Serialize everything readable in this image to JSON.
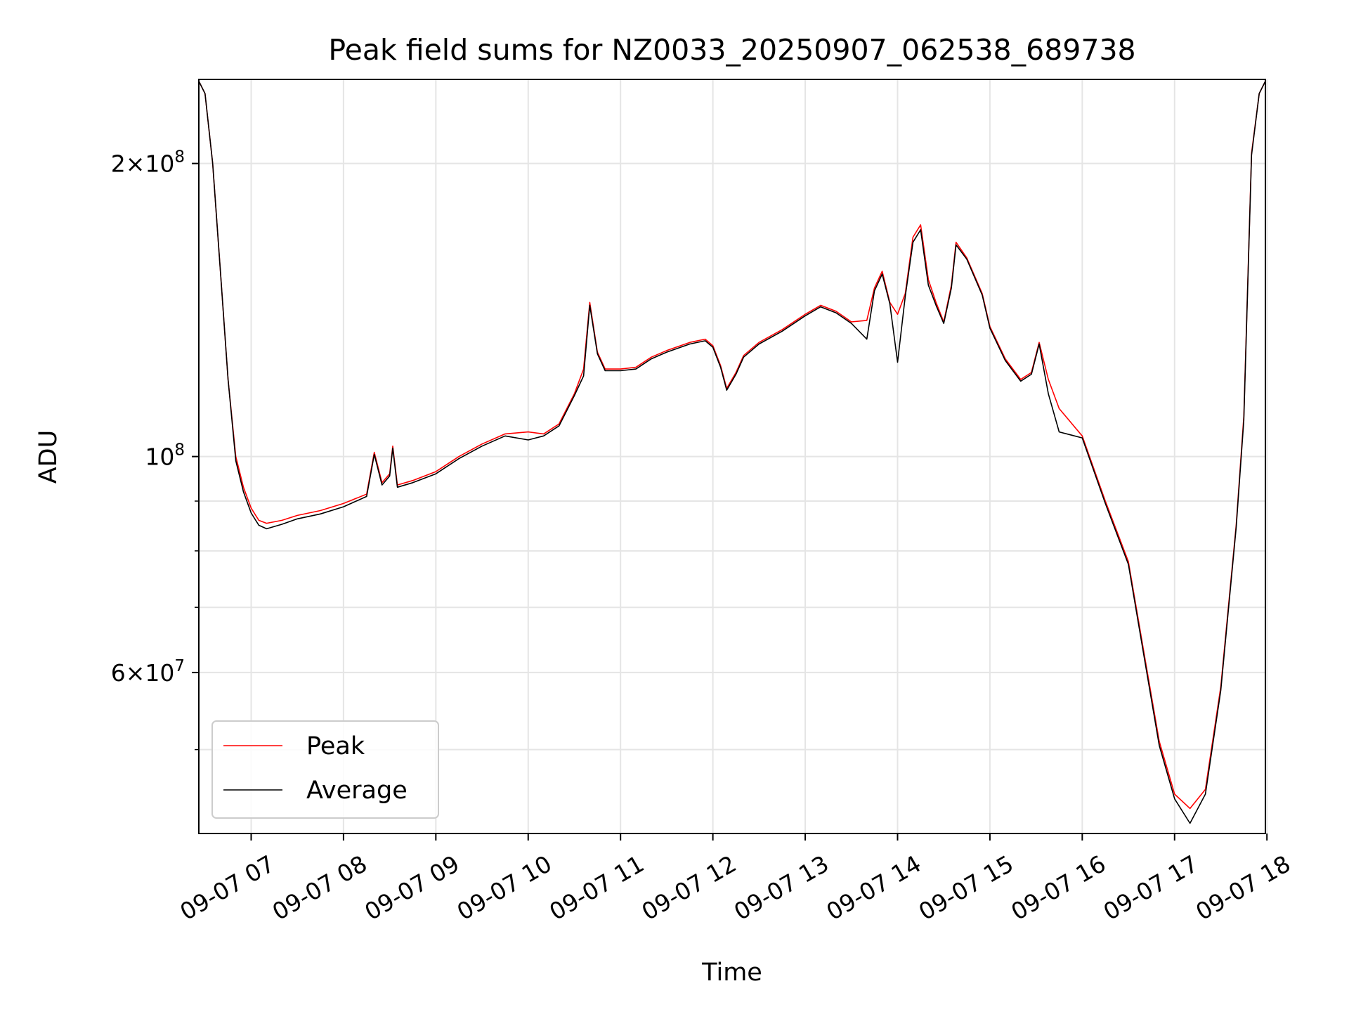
{
  "colors": {
    "peak": "#ff0000",
    "average": "#000000",
    "grid": "#e5e5e5",
    "axes": "#000000",
    "legend_border": "#cccccc",
    "background": "#ffffff"
  },
  "chart_data": {
    "type": "line",
    "title": "Peak field sums for NZ0033_20250907_062538_689738",
    "xlabel": "Time",
    "ylabel": "ADU",
    "yscale": "log",
    "grid": true,
    "legend_position": "lower-left",
    "xlim": [
      "2025-09-07 06:26",
      "2025-09-07 17:59"
    ],
    "ylim": [
      41000000,
      244000000
    ],
    "x_ticks": [
      {
        "t": "2025-09-07 07:00",
        "label": "09-07 07"
      },
      {
        "t": "2025-09-07 08:00",
        "label": "09-07 08"
      },
      {
        "t": "2025-09-07 09:00",
        "label": "09-07 09"
      },
      {
        "t": "2025-09-07 10:00",
        "label": "09-07 10"
      },
      {
        "t": "2025-09-07 11:00",
        "label": "09-07 11"
      },
      {
        "t": "2025-09-07 12:00",
        "label": "09-07 12"
      },
      {
        "t": "2025-09-07 13:00",
        "label": "09-07 13"
      },
      {
        "t": "2025-09-07 14:00",
        "label": "09-07 14"
      },
      {
        "t": "2025-09-07 15:00",
        "label": "09-07 15"
      },
      {
        "t": "2025-09-07 16:00",
        "label": "09-07 16"
      },
      {
        "t": "2025-09-07 17:00",
        "label": "09-07 17"
      },
      {
        "t": "2025-09-07 18:00",
        "label": "09-07 18"
      }
    ],
    "y_major_ticks": [
      {
        "value": 200000000,
        "mantissa": "2",
        "exponent": "8"
      },
      {
        "value": 100000000,
        "mantissa": "",
        "exponent": "8"
      },
      {
        "value": 60000000,
        "mantissa": "6",
        "exponent": "7"
      }
    ],
    "y_minor_ticks": [
      50000000,
      70000000,
      80000000,
      90000000
    ],
    "legend": [
      {
        "label": "Peak",
        "series": "Peak"
      },
      {
        "label": "Average",
        "series": "Average"
      }
    ],
    "series": [
      {
        "name": "Peak",
        "points": [
          [
            "2025-09-07 06:26",
            243000000
          ],
          [
            "2025-09-07 06:30",
            236000000
          ],
          [
            "2025-09-07 06:35",
            200000000
          ],
          [
            "2025-09-07 06:40",
            155000000
          ],
          [
            "2025-09-07 06:45",
            120000000
          ],
          [
            "2025-09-07 06:50",
            100000000
          ],
          [
            "2025-09-07 06:55",
            93000000
          ],
          [
            "2025-09-07 07:00",
            88500000
          ],
          [
            "2025-09-07 07:05",
            86000000
          ],
          [
            "2025-09-07 07:10",
            85400000
          ],
          [
            "2025-09-07 07:20",
            86000000
          ],
          [
            "2025-09-07 07:30",
            87000000
          ],
          [
            "2025-09-07 07:45",
            88000000
          ],
          [
            "2025-09-07 08:00",
            89500000
          ],
          [
            "2025-09-07 08:15",
            91500000
          ],
          [
            "2025-09-07 08:20",
            101000000
          ],
          [
            "2025-09-07 08:25",
            94000000
          ],
          [
            "2025-09-07 08:30",
            96000000
          ],
          [
            "2025-09-07 08:32",
            102500000
          ],
          [
            "2025-09-07 08:35",
            93500000
          ],
          [
            "2025-09-07 08:45",
            94500000
          ],
          [
            "2025-09-07 09:00",
            96500000
          ],
          [
            "2025-09-07 09:15",
            100000000
          ],
          [
            "2025-09-07 09:30",
            103000000
          ],
          [
            "2025-09-07 09:45",
            105500000
          ],
          [
            "2025-09-07 10:00",
            106000000
          ],
          [
            "2025-09-07 10:10",
            105500000
          ],
          [
            "2025-09-07 10:20",
            108000000
          ],
          [
            "2025-09-07 10:30",
            116000000
          ],
          [
            "2025-09-07 10:36",
            123000000
          ],
          [
            "2025-09-07 10:40",
            144000000
          ],
          [
            "2025-09-07 10:45",
            128000000
          ],
          [
            "2025-09-07 10:50",
            123000000
          ],
          [
            "2025-09-07 11:00",
            123000000
          ],
          [
            "2025-09-07 11:10",
            123500000
          ],
          [
            "2025-09-07 11:20",
            126500000
          ],
          [
            "2025-09-07 11:30",
            128500000
          ],
          [
            "2025-09-07 11:45",
            131000000
          ],
          [
            "2025-09-07 11:55",
            132000000
          ],
          [
            "2025-09-07 12:00",
            130000000
          ],
          [
            "2025-09-07 12:05",
            124000000
          ],
          [
            "2025-09-07 12:09",
            117500000
          ],
          [
            "2025-09-07 12:15",
            122000000
          ],
          [
            "2025-09-07 12:20",
            127000000
          ],
          [
            "2025-09-07 12:30",
            131000000
          ],
          [
            "2025-09-07 12:45",
            135000000
          ],
          [
            "2025-09-07 13:00",
            140000000
          ],
          [
            "2025-09-07 13:10",
            143000000
          ],
          [
            "2025-09-07 13:20",
            141000000
          ],
          [
            "2025-09-07 13:30",
            137500000
          ],
          [
            "2025-09-07 13:40",
            138000000
          ],
          [
            "2025-09-07 13:45",
            149000000
          ],
          [
            "2025-09-07 13:50",
            155000000
          ],
          [
            "2025-09-07 13:55",
            144000000
          ],
          [
            "2025-09-07 14:00",
            140000000
          ],
          [
            "2025-09-07 14:05",
            147000000
          ],
          [
            "2025-09-07 14:10",
            168000000
          ],
          [
            "2025-09-07 14:15",
            173000000
          ],
          [
            "2025-09-07 14:20",
            152000000
          ],
          [
            "2025-09-07 14:25",
            144000000
          ],
          [
            "2025-09-07 14:30",
            137500000
          ],
          [
            "2025-09-07 14:35",
            150000000
          ],
          [
            "2025-09-07 14:38",
            166000000
          ],
          [
            "2025-09-07 14:45",
            160000000
          ],
          [
            "2025-09-07 14:55",
            147000000
          ],
          [
            "2025-09-07 15:00",
            136000000
          ],
          [
            "2025-09-07 15:10",
            126000000
          ],
          [
            "2025-09-07 15:20",
            120000000
          ],
          [
            "2025-09-07 15:27",
            122000000
          ],
          [
            "2025-09-07 15:32",
            131000000
          ],
          [
            "2025-09-07 15:38",
            120000000
          ],
          [
            "2025-09-07 15:45",
            112000000
          ],
          [
            "2025-09-07 16:00",
            105000000
          ],
          [
            "2025-09-07 16:15",
            90000000
          ],
          [
            "2025-09-07 16:30",
            78000000
          ],
          [
            "2025-09-07 16:40",
            63000000
          ],
          [
            "2025-09-07 16:50",
            51000000
          ],
          [
            "2025-09-07 17:00",
            45000000
          ],
          [
            "2025-09-07 17:10",
            43500000
          ],
          [
            "2025-09-07 17:20",
            45500000
          ],
          [
            "2025-09-07 17:30",
            58000000
          ],
          [
            "2025-09-07 17:40",
            85000000
          ],
          [
            "2025-09-07 17:45",
            110000000
          ],
          [
            "2025-09-07 17:50",
            205000000
          ],
          [
            "2025-09-07 17:55",
            236000000
          ],
          [
            "2025-09-07 17:59",
            243000000
          ]
        ]
      },
      {
        "name": "Average",
        "points": [
          [
            "2025-09-07 06:26",
            243000000
          ],
          [
            "2025-09-07 06:30",
            236000000
          ],
          [
            "2025-09-07 06:35",
            200000000
          ],
          [
            "2025-09-07 06:40",
            155000000
          ],
          [
            "2025-09-07 06:45",
            120000000
          ],
          [
            "2025-09-07 06:50",
            99000000
          ],
          [
            "2025-09-07 06:55",
            92000000
          ],
          [
            "2025-09-07 07:00",
            87500000
          ],
          [
            "2025-09-07 07:05",
            85000000
          ],
          [
            "2025-09-07 07:10",
            84300000
          ],
          [
            "2025-09-07 07:20",
            85200000
          ],
          [
            "2025-09-07 07:30",
            86300000
          ],
          [
            "2025-09-07 07:45",
            87300000
          ],
          [
            "2025-09-07 08:00",
            88800000
          ],
          [
            "2025-09-07 08:15",
            91000000
          ],
          [
            "2025-09-07 08:20",
            100500000
          ],
          [
            "2025-09-07 08:25",
            93500000
          ],
          [
            "2025-09-07 08:30",
            95500000
          ],
          [
            "2025-09-07 08:32",
            102000000
          ],
          [
            "2025-09-07 08:35",
            93000000
          ],
          [
            "2025-09-07 08:45",
            94000000
          ],
          [
            "2025-09-07 09:00",
            96000000
          ],
          [
            "2025-09-07 09:15",
            99500000
          ],
          [
            "2025-09-07 09:30",
            102500000
          ],
          [
            "2025-09-07 09:45",
            105000000
          ],
          [
            "2025-09-07 10:00",
            104000000
          ],
          [
            "2025-09-07 10:10",
            105000000
          ],
          [
            "2025-09-07 10:20",
            107500000
          ],
          [
            "2025-09-07 10:30",
            115500000
          ],
          [
            "2025-09-07 10:36",
            121000000
          ],
          [
            "2025-09-07 10:40",
            143000000
          ],
          [
            "2025-09-07 10:45",
            127500000
          ],
          [
            "2025-09-07 10:50",
            122500000
          ],
          [
            "2025-09-07 11:00",
            122500000
          ],
          [
            "2025-09-07 11:10",
            123000000
          ],
          [
            "2025-09-07 11:20",
            126000000
          ],
          [
            "2025-09-07 11:30",
            128000000
          ],
          [
            "2025-09-07 11:45",
            130500000
          ],
          [
            "2025-09-07 11:55",
            131500000
          ],
          [
            "2025-09-07 12:00",
            129500000
          ],
          [
            "2025-09-07 12:05",
            123500000
          ],
          [
            "2025-09-07 12:09",
            117000000
          ],
          [
            "2025-09-07 12:15",
            121500000
          ],
          [
            "2025-09-07 12:20",
            126500000
          ],
          [
            "2025-09-07 12:30",
            130500000
          ],
          [
            "2025-09-07 12:45",
            134500000
          ],
          [
            "2025-09-07 13:00",
            139500000
          ],
          [
            "2025-09-07 13:10",
            142500000
          ],
          [
            "2025-09-07 13:20",
            140500000
          ],
          [
            "2025-09-07 13:30",
            137000000
          ],
          [
            "2025-09-07 13:40",
            132000000
          ],
          [
            "2025-09-07 13:45",
            148000000
          ],
          [
            "2025-09-07 13:50",
            154000000
          ],
          [
            "2025-09-07 13:55",
            143500000
          ],
          [
            "2025-09-07 14:00",
            125000000
          ],
          [
            "2025-09-07 14:05",
            146000000
          ],
          [
            "2025-09-07 14:10",
            166000000
          ],
          [
            "2025-09-07 14:15",
            171000000
          ],
          [
            "2025-09-07 14:20",
            150000000
          ],
          [
            "2025-09-07 14:25",
            143000000
          ],
          [
            "2025-09-07 14:30",
            137000000
          ],
          [
            "2025-09-07 14:35",
            149000000
          ],
          [
            "2025-09-07 14:38",
            165000000
          ],
          [
            "2025-09-07 14:45",
            159500000
          ],
          [
            "2025-09-07 14:55",
            146500000
          ],
          [
            "2025-09-07 15:00",
            135500000
          ],
          [
            "2025-09-07 15:10",
            125500000
          ],
          [
            "2025-09-07 15:20",
            119500000
          ],
          [
            "2025-09-07 15:27",
            121500000
          ],
          [
            "2025-09-07 15:32",
            130500000
          ],
          [
            "2025-09-07 15:38",
            116000000
          ],
          [
            "2025-09-07 15:45",
            106000000
          ],
          [
            "2025-09-07 16:00",
            104500000
          ],
          [
            "2025-09-07 16:15",
            89500000
          ],
          [
            "2025-09-07 16:30",
            77500000
          ],
          [
            "2025-09-07 16:40",
            62500000
          ],
          [
            "2025-09-07 16:50",
            50500000
          ],
          [
            "2025-09-07 17:00",
            44500000
          ],
          [
            "2025-09-07 17:10",
            42000000
          ],
          [
            "2025-09-07 17:20",
            45000000
          ],
          [
            "2025-09-07 17:30",
            57500000
          ],
          [
            "2025-09-07 17:40",
            84500000
          ],
          [
            "2025-09-07 17:45",
            109000000
          ],
          [
            "2025-09-07 17:50",
            204000000
          ],
          [
            "2025-09-07 17:55",
            236000000
          ],
          [
            "2025-09-07 17:59",
            243000000
          ]
        ]
      }
    ]
  }
}
